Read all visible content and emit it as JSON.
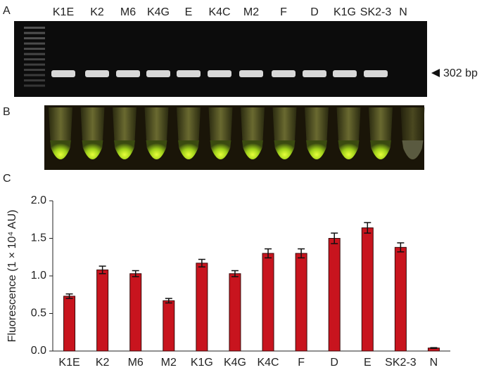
{
  "panels": {
    "a": "A",
    "b": "B",
    "c": "C"
  },
  "gel": {
    "lanes": [
      "K1E",
      "K2",
      "M6",
      "K4G",
      "E",
      "K4C",
      "M2",
      "F",
      "D",
      "K1G",
      "SK2-3",
      "N"
    ],
    "marker": "302 bp"
  },
  "chart_data": {
    "type": "bar",
    "y_label": "Fluorescence (1 × 10⁴ AU)",
    "categories": [
      "K1E",
      "K2",
      "M6",
      "M2",
      "K1G",
      "K4G",
      "K4C",
      "F",
      "D",
      "E",
      "SK2-3",
      "N"
    ],
    "series": [
      {
        "color": "#c8141e",
        "values": [
          0.73,
          1.08,
          1.03,
          0.67,
          1.17,
          1.03,
          1.3,
          1.3,
          1.5,
          1.64,
          1.38,
          0.04
        ],
        "errors": [
          0.03,
          0.05,
          0.04,
          0.03,
          0.05,
          0.04,
          0.06,
          0.06,
          0.07,
          0.07,
          0.06,
          0.005
        ]
      }
    ],
    "ylim": [
      0,
      2.0
    ],
    "yticks": [
      {
        "value": 0,
        "label": "0.0"
      },
      0.5,
      {
        "value": 1,
        "label": "1.0"
      },
      1.5,
      {
        "value": 2,
        "label": "2.0"
      }
    ]
  }
}
